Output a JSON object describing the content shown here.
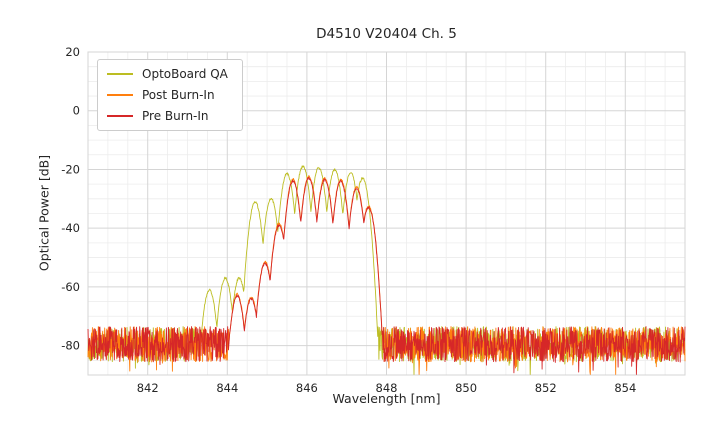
{
  "chart_data": {
    "type": "line",
    "title": "D4510 V20404 Ch. 5",
    "xlabel": "Wavelength [nm]",
    "ylabel": "Optical Power [dB]",
    "xlim": [
      840.5,
      855.5
    ],
    "ylim": [
      -90,
      20
    ],
    "xticks": [
      842,
      844,
      846,
      848,
      850,
      852,
      854
    ],
    "yticks": [
      20,
      0,
      -20,
      -40,
      -60,
      -80
    ],
    "minor_x_step": 0.5,
    "minor_y_step": 5,
    "grid": true,
    "legend_position": "upper-left",
    "noise_floor": {
      "mean_db": -79.5,
      "spread_db": 6,
      "spike_extra_db": 8,
      "spike_prob": 0.04
    },
    "mode_width_coef": 375,
    "series": [
      {
        "name": "OptoBoard QA",
        "color": "#bcbd22",
        "seed": 101,
        "modes": [
          [
            843.55,
            -61
          ],
          [
            843.95,
            -57
          ],
          [
            844.3,
            -57
          ],
          [
            844.7,
            -31
          ],
          [
            845.1,
            -30
          ],
          [
            845.5,
            -21.5
          ],
          [
            845.9,
            -19
          ],
          [
            846.3,
            -19.5
          ],
          [
            846.7,
            -20
          ],
          [
            847.1,
            -21
          ],
          [
            847.4,
            -23
          ]
        ]
      },
      {
        "name": "Post Burn-In",
        "color": "#ff7f0e",
        "seed": 202,
        "modes": [
          [
            844.25,
            -62.5
          ],
          [
            844.6,
            -63.5
          ],
          [
            844.95,
            -51.5
          ],
          [
            845.3,
            -38.5
          ],
          [
            845.65,
            -23.4
          ],
          [
            846.05,
            -22.4
          ],
          [
            846.45,
            -22.9
          ],
          [
            846.85,
            -23.4
          ],
          [
            847.25,
            -25.9
          ],
          [
            847.55,
            -32.4
          ]
        ]
      },
      {
        "name": "Pre Burn-In",
        "color": "#d62728",
        "seed": 303,
        "modes": [
          [
            844.25,
            -63
          ],
          [
            844.6,
            -64
          ],
          [
            844.95,
            -52
          ],
          [
            845.3,
            -39
          ],
          [
            845.65,
            -24
          ],
          [
            846.05,
            -23
          ],
          [
            846.45,
            -23.5
          ],
          [
            846.85,
            -24
          ],
          [
            847.25,
            -26.5
          ],
          [
            847.55,
            -33
          ]
        ]
      }
    ]
  }
}
